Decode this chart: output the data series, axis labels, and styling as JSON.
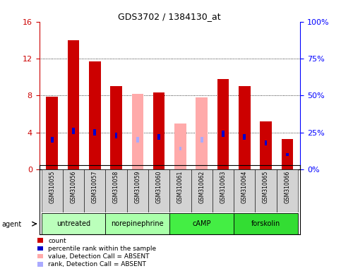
{
  "title": "GDS3702 / 1384130_at",
  "samples": [
    "GSM310055",
    "GSM310056",
    "GSM310057",
    "GSM310058",
    "GSM310059",
    "GSM310060",
    "GSM310061",
    "GSM310062",
    "GSM310063",
    "GSM310064",
    "GSM310065",
    "GSM310066"
  ],
  "agents": [
    {
      "label": "untreated",
      "indices": [
        0,
        1,
        2
      ],
      "color": "#bbffbb"
    },
    {
      "label": "norepinephrine",
      "indices": [
        3,
        4,
        5
      ],
      "color": "#aaffaa"
    },
    {
      "label": "cAMP",
      "indices": [
        6,
        7,
        8
      ],
      "color": "#44ee44"
    },
    {
      "label": "forskolin",
      "indices": [
        9,
        10,
        11
      ],
      "color": "#33dd33"
    }
  ],
  "count_values": [
    7.9,
    14.0,
    11.7,
    9.0,
    null,
    8.3,
    null,
    null,
    9.8,
    9.0,
    5.2,
    3.3
  ],
  "percentile_values": [
    20.0,
    26.0,
    25.0,
    23.0,
    null,
    22.0,
    null,
    null,
    24.0,
    22.0,
    18.0,
    10.0
  ],
  "absent_count": [
    null,
    null,
    null,
    null,
    8.2,
    null,
    5.0,
    7.8,
    null,
    null,
    null,
    null
  ],
  "absent_rank": [
    null,
    null,
    null,
    null,
    20.0,
    null,
    14.0,
    20.0,
    null,
    null,
    null,
    null
  ],
  "ylim_left": [
    0,
    16
  ],
  "ylim_right": [
    0,
    100
  ],
  "yticks_left": [
    0,
    4,
    8,
    12,
    16
  ],
  "yticks_right": [
    0,
    25,
    50,
    75,
    100
  ],
  "ytick_labels_left": [
    "0",
    "4",
    "8",
    "12",
    "16"
  ],
  "ytick_labels_right": [
    "0%",
    "25%",
    "50%",
    "75%",
    "100%"
  ],
  "count_color": "#cc0000",
  "percentile_color": "#0000cc",
  "absent_count_color": "#ffaaaa",
  "absent_rank_color": "#aaaaff",
  "legend_items": [
    {
      "color": "#cc0000",
      "label": "count"
    },
    {
      "color": "#0000cc",
      "label": "percentile rank within the sample"
    },
    {
      "color": "#ffaaaa",
      "label": "value, Detection Call = ABSENT"
    },
    {
      "color": "#aaaaff",
      "label": "rank, Detection Call = ABSENT"
    }
  ]
}
